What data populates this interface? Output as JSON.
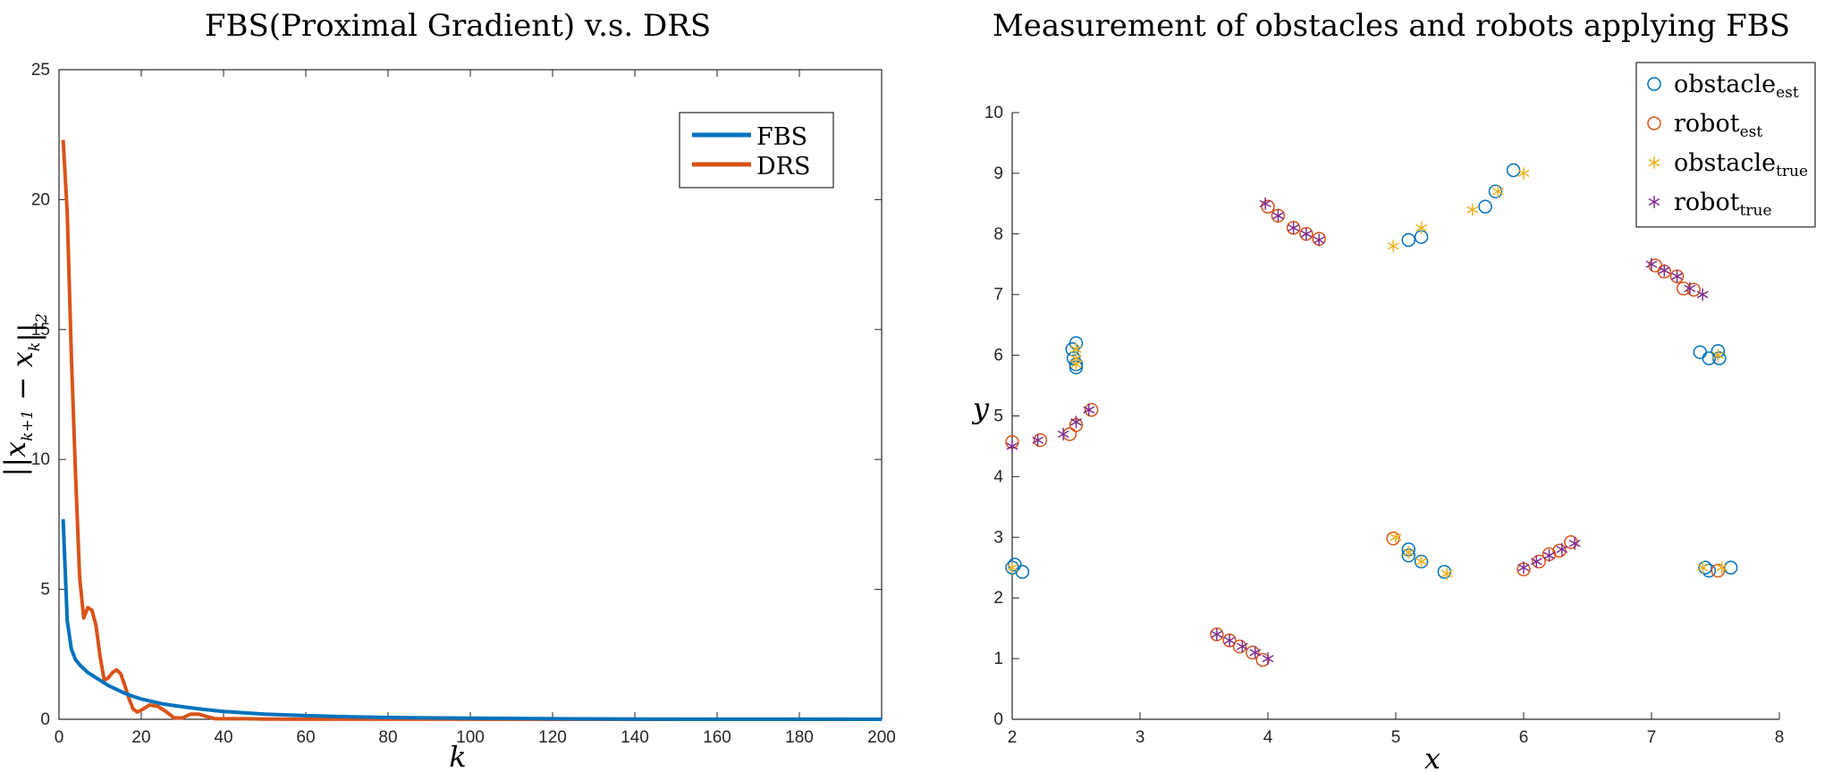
{
  "chart_data": [
    {
      "type": "line",
      "title": "FBS(Proximal Gradient) v.s. DRS",
      "xlabel": "k",
      "ylabel": "||x_{k+1} − x_k||_2",
      "xlim": [
        0,
        200
      ],
      "ylim": [
        0,
        25
      ],
      "xticks": [
        "0",
        "20",
        "40",
        "60",
        "80",
        "100",
        "120",
        "140",
        "160",
        "180",
        "200"
      ],
      "yticks": [
        "0",
        "5",
        "10",
        "15",
        "20",
        "25"
      ],
      "legend_position": "top-right",
      "grid": false,
      "series": [
        {
          "name": "FBS",
          "color": "#0072BD",
          "x": [
            1,
            2,
            3,
            4,
            5,
            6,
            7,
            8,
            9,
            10,
            12,
            14,
            16,
            18,
            20,
            25,
            30,
            35,
            40,
            50,
            60,
            70,
            80,
            100,
            120,
            140,
            160,
            180,
            200
          ],
          "y": [
            7.7,
            3.8,
            2.7,
            2.3,
            2.1,
            1.95,
            1.8,
            1.7,
            1.6,
            1.5,
            1.3,
            1.15,
            1.0,
            0.88,
            0.78,
            0.6,
            0.48,
            0.38,
            0.3,
            0.2,
            0.14,
            0.1,
            0.07,
            0.04,
            0.02,
            0.01,
            0.005,
            0.003,
            0.001
          ]
        },
        {
          "name": "DRS",
          "color": "#D95319",
          "x": [
            1,
            2,
            3,
            4,
            5,
            6,
            7,
            8,
            9,
            10,
            11,
            12,
            13,
            14,
            15,
            16,
            17,
            18,
            19,
            20,
            22,
            24,
            26,
            28,
            30,
            32,
            34,
            36,
            38,
            40,
            45,
            50,
            60,
            80,
            100,
            150,
            200
          ],
          "y": [
            22.3,
            19.5,
            14,
            9.5,
            5.5,
            3.9,
            4.3,
            4.2,
            3.6,
            2.4,
            1.5,
            1.6,
            1.8,
            1.9,
            1.75,
            1.3,
            0.8,
            0.4,
            0.28,
            0.35,
            0.55,
            0.5,
            0.3,
            0.05,
            0.05,
            0.2,
            0.2,
            0.1,
            0.02,
            0.02,
            0.02,
            0.01,
            0.005,
            0.003,
            0.002,
            0.001,
            0.0
          ]
        }
      ]
    },
    {
      "type": "scatter",
      "title": "Measurement of obstacles and robots applying FBS",
      "xlabel": "x",
      "ylabel": "y",
      "xlim": [
        2,
        8
      ],
      "ylim": [
        0,
        10
      ],
      "xticks": [
        "2",
        "3",
        "4",
        "5",
        "6",
        "7",
        "8"
      ],
      "yticks": [
        "0",
        "1",
        "2",
        "3",
        "4",
        "5",
        "6",
        "7",
        "8",
        "9",
        "10"
      ],
      "legend_position": "top-right",
      "grid": false,
      "series": [
        {
          "name": "obstacle_est",
          "label_main": "obstacle",
          "label_sub": "est",
          "marker": "circle",
          "color": "#0072BD",
          "points": [
            [
              2.5,
              6.2
            ],
            [
              2.47,
              6.1
            ],
            [
              2.48,
              5.95
            ],
            [
              2.5,
              5.85
            ],
            [
              2.5,
              5.8
            ],
            [
              5.1,
              7.9
            ],
            [
              5.2,
              7.95
            ],
            [
              5.7,
              8.45
            ],
            [
              5.78,
              8.7
            ],
            [
              5.92,
              9.05
            ],
            [
              7.38,
              6.05
            ],
            [
              7.45,
              5.95
            ],
            [
              7.52,
              6.07
            ],
            [
              7.53,
              5.95
            ],
            [
              2.0,
              2.5
            ],
            [
              2.02,
              2.55
            ],
            [
              2.08,
              2.43
            ],
            [
              5.1,
              2.8
            ],
            [
              5.1,
              2.7
            ],
            [
              5.2,
              2.6
            ],
            [
              5.38,
              2.43
            ],
            [
              7.42,
              2.5
            ],
            [
              7.45,
              2.45
            ],
            [
              7.62,
              2.5
            ]
          ]
        },
        {
          "name": "robot_est",
          "label_main": "robot",
          "label_sub": "est",
          "marker": "circle",
          "color": "#D95319",
          "points": [
            [
              4.0,
              8.45
            ],
            [
              4.08,
              8.3
            ],
            [
              4.2,
              8.1
            ],
            [
              4.3,
              8.0
            ],
            [
              4.4,
              7.92
            ],
            [
              7.03,
              7.48
            ],
            [
              7.1,
              7.38
            ],
            [
              7.2,
              7.3
            ],
            [
              7.25,
              7.1
            ],
            [
              7.33,
              7.08
            ],
            [
              2.0,
              4.57
            ],
            [
              2.22,
              4.6
            ],
            [
              2.45,
              4.7
            ],
            [
              2.5,
              4.85
            ],
            [
              2.62,
              5.1
            ],
            [
              4.98,
              2.98
            ],
            [
              3.6,
              1.4
            ],
            [
              3.7,
              1.3
            ],
            [
              3.78,
              1.2
            ],
            [
              3.88,
              1.1
            ],
            [
              3.96,
              0.98
            ],
            [
              6.0,
              2.47
            ],
            [
              6.12,
              2.6
            ],
            [
              6.2,
              2.72
            ],
            [
              6.28,
              2.78
            ],
            [
              6.37,
              2.92
            ],
            [
              7.52,
              2.45
            ]
          ]
        },
        {
          "name": "obstacle_true",
          "label_main": "obstacle",
          "label_sub": "true",
          "marker": "asterisk",
          "color": "#EDB120",
          "points": [
            [
              2.5,
              6.1
            ],
            [
              2.5,
              5.95
            ],
            [
              2.5,
              5.85
            ],
            [
              4.98,
              7.8
            ],
            [
              5.2,
              8.1
            ],
            [
              5.6,
              8.4
            ],
            [
              5.8,
              8.7
            ],
            [
              6.0,
              9.0
            ],
            [
              7.52,
              6.0
            ],
            [
              2.0,
              2.5
            ],
            [
              5.0,
              3.0
            ],
            [
              5.1,
              2.75
            ],
            [
              5.2,
              2.6
            ],
            [
              5.4,
              2.4
            ],
            [
              7.4,
              2.5
            ],
            [
              7.55,
              2.5
            ]
          ]
        },
        {
          "name": "robot_true",
          "label_main": "robot",
          "label_sub": "true",
          "marker": "asterisk",
          "color": "#7E2F8E",
          "points": [
            [
              3.98,
              8.5
            ],
            [
              4.08,
              8.3
            ],
            [
              4.2,
              8.1
            ],
            [
              4.3,
              8.0
            ],
            [
              4.4,
              7.9
            ],
            [
              7.0,
              7.5
            ],
            [
              7.1,
              7.4
            ],
            [
              7.2,
              7.3
            ],
            [
              7.3,
              7.1
            ],
            [
              7.4,
              7.0
            ],
            [
              2.0,
              4.5
            ],
            [
              2.2,
              4.6
            ],
            [
              2.4,
              4.7
            ],
            [
              2.5,
              4.9
            ],
            [
              2.6,
              5.1
            ],
            [
              3.6,
              1.4
            ],
            [
              3.7,
              1.3
            ],
            [
              3.8,
              1.2
            ],
            [
              3.9,
              1.1
            ],
            [
              4.0,
              1.0
            ],
            [
              6.0,
              2.5
            ],
            [
              6.1,
              2.6
            ],
            [
              6.2,
              2.7
            ],
            [
              6.3,
              2.8
            ],
            [
              6.4,
              2.9
            ]
          ]
        }
      ]
    }
  ]
}
